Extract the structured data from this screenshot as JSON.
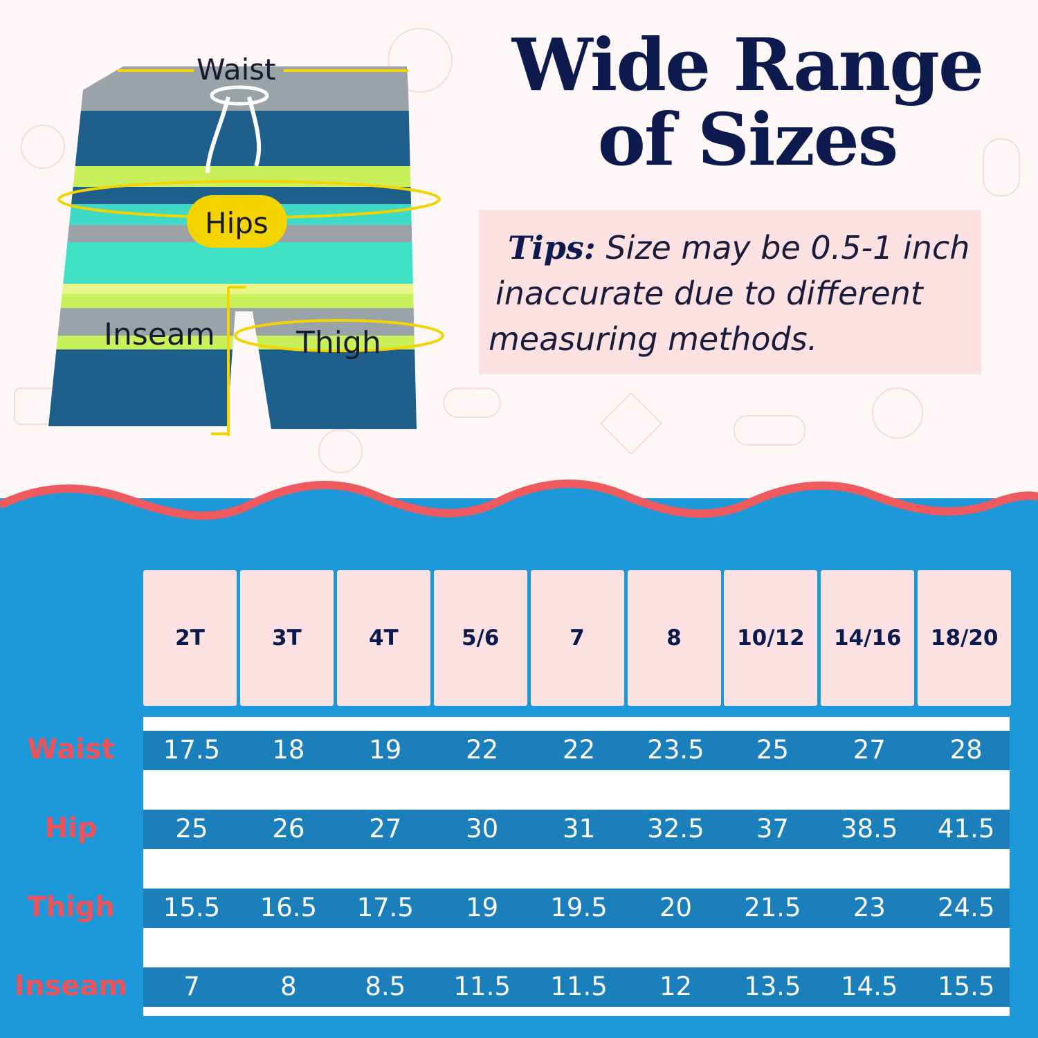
{
  "headline": {
    "line1": "Wide Range",
    "line2": "of Sizes"
  },
  "tips": {
    "lead": "Tips:",
    "line1": "Size may be 0.5-1 inch",
    "line2": "inaccurate due to different",
    "line3": "measuring methods."
  },
  "diagram_labels": {
    "waist": "Waist",
    "hips": "Hips",
    "inseam": "Inseam",
    "thigh": "Thigh"
  },
  "colors": {
    "navy": "#0c1a4d",
    "pink": "#fbe1e1",
    "blue": "#1d98d8",
    "band": "#1a7fbb",
    "red": "#f0525a",
    "yellow": "#f3d400"
  },
  "size_chart": {
    "sizes": [
      "2T",
      "3T",
      "4T",
      "5/6",
      "7",
      "8",
      "10/12",
      "14/16",
      "18/20"
    ],
    "rows": [
      {
        "label": "Waist",
        "values": [
          "17.5",
          "18",
          "19",
          "22",
          "22",
          "23.5",
          "25",
          "27",
          "28"
        ]
      },
      {
        "label": "Hip",
        "values": [
          "25",
          "26",
          "27",
          "30",
          "31",
          "32.5",
          "37",
          "38.5",
          "41.5"
        ]
      },
      {
        "label": "Thigh",
        "values": [
          "15.5",
          "16.5",
          "17.5",
          "19",
          "19.5",
          "20",
          "21.5",
          "23",
          "24.5"
        ]
      },
      {
        "label": "Inseam",
        "values": [
          "7",
          "8",
          "8.5",
          "11.5",
          "11.5",
          "12",
          "13.5",
          "14.5",
          "15.5"
        ]
      }
    ]
  }
}
